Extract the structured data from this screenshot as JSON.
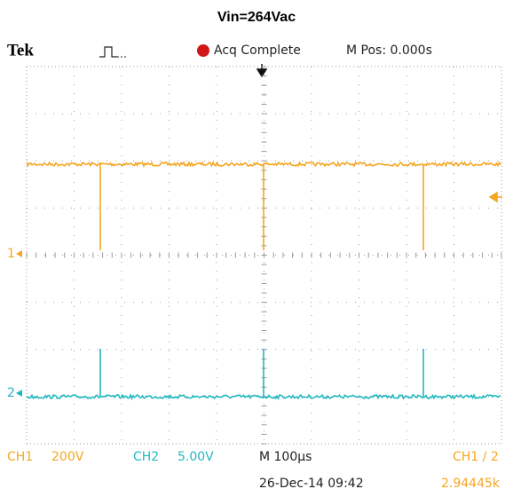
{
  "title": "Vin=264Vac",
  "header": {
    "brand": "Tek",
    "status": "Acq Complete",
    "position": "M Pos: 0.000s"
  },
  "markers": {
    "ch1": "1",
    "ch2": "2"
  },
  "footer": {
    "ch1_label": "CH1",
    "ch1_scale": "200V",
    "ch2_label": "CH2",
    "ch2_scale": "5.00V",
    "timebase": "M 100µs",
    "datetime": "26-Dec-14 09:42",
    "trigger": "CH1 / 2",
    "frequency": "2.94445k"
  }
}
